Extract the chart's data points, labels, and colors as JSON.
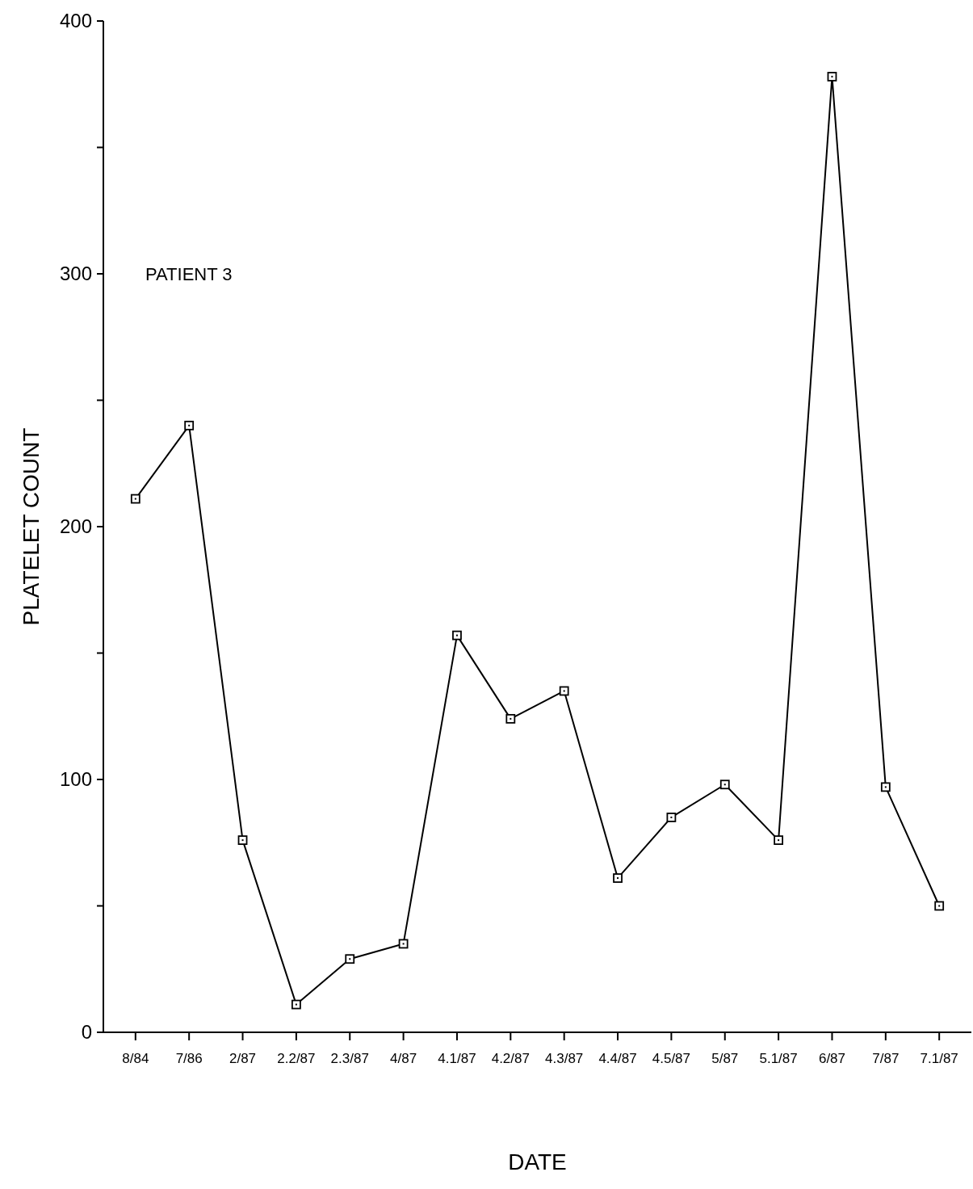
{
  "chart_data": {
    "type": "line",
    "xlabel": "DATE",
    "ylabel": "PLATELET COUNT",
    "categories": [
      "8/84",
      "7/86",
      "2/87",
      "2.2/87",
      "2.3/87",
      "4/87",
      "4.1/87",
      "4.2/87",
      "4.3/87",
      "4.4/87",
      "4.5/87",
      "5/87",
      "5.1/87",
      "6/87",
      "7/87",
      "7.1/87"
    ],
    "series": [
      {
        "color": "#000000",
        "values": [
          211,
          240,
          76,
          11,
          29,
          35,
          157,
          124,
          135,
          61,
          85,
          98,
          76,
          378,
          97,
          50
        ]
      }
    ],
    "ylim": [
      0,
      400
    ],
    "yticks": [
      0,
      {
        "value": 50,
        "label": null
      },
      100,
      {
        "value": 150,
        "label": null
      },
      200,
      {
        "value": 250,
        "label": null
      },
      300,
      {
        "value": 350,
        "label": null
      },
      400
    ],
    "annotations": [
      "PATIENT 3"
    ],
    "marker": "square",
    "line_style": "solid",
    "grid": false
  }
}
